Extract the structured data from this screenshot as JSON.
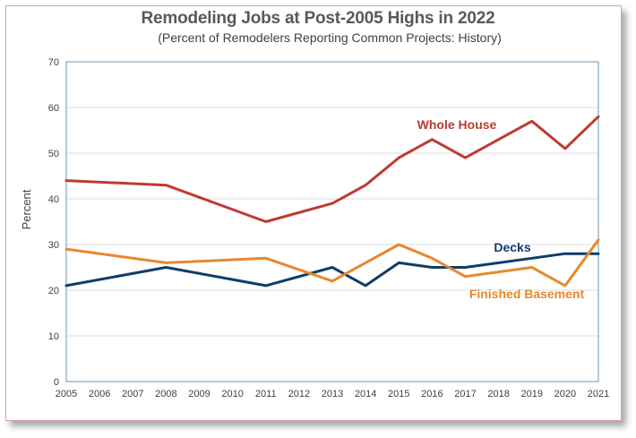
{
  "chart_data": {
    "type": "line",
    "title": "Remodeling Jobs at Post-2005 Highs in 2022",
    "subtitle": "(Percent of Remodelers Reporting Common Projects: History)",
    "ylabel": "Percent",
    "xlabel": "",
    "ylim": [
      0,
      70
    ],
    "yticks": [
      0,
      10,
      20,
      30,
      40,
      50,
      60,
      70
    ],
    "categories": [
      "2005",
      "2006",
      "2007",
      "2008",
      "2009",
      "2010",
      "2011",
      "2012",
      "2013",
      "2014",
      "2015",
      "2016",
      "2017",
      "2018",
      "2019",
      "2020",
      "2021"
    ],
    "grid": true,
    "series": [
      {
        "name": "Whole House",
        "color": "#be3a34",
        "values": [
          44,
          null,
          null,
          43,
          null,
          null,
          35,
          null,
          39,
          43,
          49,
          53,
          49,
          null,
          57,
          51,
          58
        ]
      },
      {
        "name": "Decks",
        "color": "#0f3d6b",
        "values": [
          21,
          null,
          null,
          25,
          null,
          null,
          21,
          null,
          25,
          21,
          26,
          25,
          25,
          null,
          27,
          28,
          28
        ]
      },
      {
        "name": "Finished Basement",
        "color": "#e8872e",
        "values": [
          29,
          null,
          null,
          26,
          null,
          null,
          27,
          null,
          22,
          null,
          30,
          27,
          23,
          null,
          25,
          21,
          31
        ]
      }
    ]
  }
}
